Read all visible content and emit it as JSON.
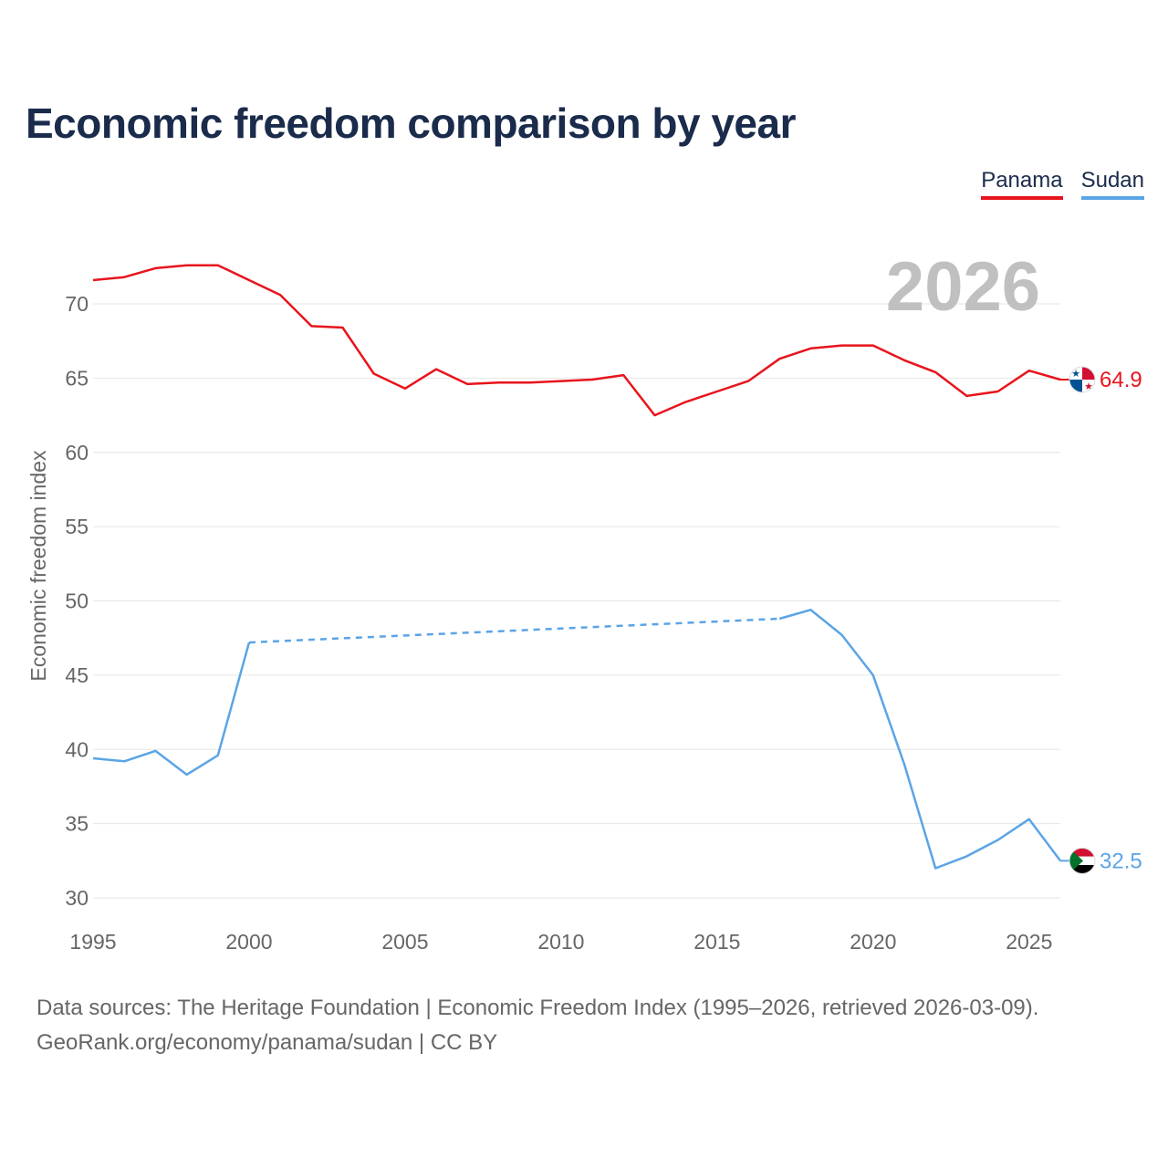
{
  "title": "Economic freedom comparison by year",
  "legend": {
    "panama_label": "Panama",
    "sudan_label": "Sudan"
  },
  "footer": {
    "line1": "Data sources: The Heritage Foundation | Economic Freedom Index (1995–2026, retrieved 2026-03-09).",
    "line2": "GeoRank.org/economy/panama/sudan | CC BY"
  },
  "chart_data": {
    "type": "line",
    "title": "Economic freedom comparison by year",
    "ylabel": "Economic freedom index",
    "xlabel": "",
    "current_year_label": "2026",
    "xlim": [
      1995,
      2026
    ],
    "ylim": [
      29,
      74
    ],
    "x_ticks": [
      1995,
      2000,
      2005,
      2010,
      2015,
      2020,
      2025
    ],
    "y_ticks": [
      30,
      35,
      40,
      45,
      50,
      55,
      60,
      65,
      70
    ],
    "grid": true,
    "legend_position": "top-right",
    "series": [
      {
        "name": "Panama",
        "color": "#e8141c",
        "end_label": "64.9",
        "flag": "panama-flag",
        "points": [
          [
            1995,
            71.6
          ],
          [
            1996,
            71.8
          ],
          [
            1997,
            72.4
          ],
          [
            1998,
            72.6
          ],
          [
            1999,
            72.6
          ],
          [
            2000,
            71.6
          ],
          [
            2001,
            70.6
          ],
          [
            2002,
            68.5
          ],
          [
            2003,
            68.4
          ],
          [
            2004,
            65.3
          ],
          [
            2005,
            64.3
          ],
          [
            2006,
            65.6
          ],
          [
            2007,
            64.6
          ],
          [
            2008,
            64.7
          ],
          [
            2009,
            64.7
          ],
          [
            2010,
            64.8
          ],
          [
            2011,
            64.9
          ],
          [
            2012,
            65.2
          ],
          [
            2013,
            62.5
          ],
          [
            2014,
            63.4
          ],
          [
            2015,
            64.1
          ],
          [
            2016,
            64.8
          ],
          [
            2017,
            66.3
          ],
          [
            2018,
            67.0
          ],
          [
            2019,
            67.2
          ],
          [
            2020,
            67.2
          ],
          [
            2021,
            66.2
          ],
          [
            2022,
            65.4
          ],
          [
            2023,
            63.8
          ],
          [
            2024,
            64.1
          ],
          [
            2025,
            65.5
          ],
          [
            2026,
            64.9
          ]
        ],
        "gaps": []
      },
      {
        "name": "Sudan",
        "color": "#5ba4e6",
        "end_label": "32.5",
        "flag": "sudan-flag",
        "points": [
          [
            1995,
            39.4
          ],
          [
            1996,
            39.2
          ],
          [
            1997,
            39.9
          ],
          [
            1998,
            38.3
          ],
          [
            1999,
            39.6
          ],
          [
            2000,
            47.2
          ],
          [
            2017,
            48.8
          ],
          [
            2018,
            49.4
          ],
          [
            2019,
            47.7
          ],
          [
            2020,
            45.0
          ],
          [
            2021,
            39.0
          ],
          [
            2022,
            32.0
          ],
          [
            2023,
            32.8
          ],
          [
            2024,
            33.9
          ],
          [
            2025,
            35.3
          ],
          [
            2026,
            32.5
          ]
        ],
        "gaps": [
          [
            2000,
            2017
          ]
        ]
      }
    ]
  }
}
